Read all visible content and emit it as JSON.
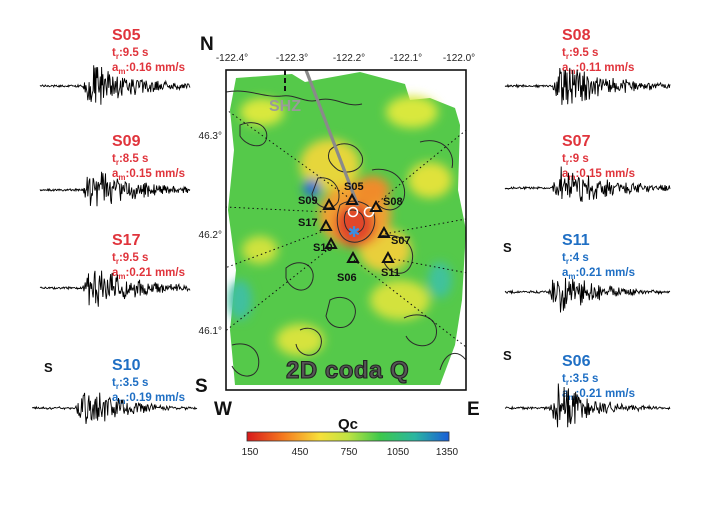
{
  "colors": {
    "red_label": "#e0343c",
    "blue_label": "#1f6fc4",
    "trace": "#000000",
    "fault": "#8a8a8a"
  },
  "map": {
    "compass": {
      "north": "N",
      "south": "S",
      "west": "W",
      "east": "E"
    },
    "lon_ticks": [
      "-122.4°",
      "-122.3°",
      "-122.2°",
      "-122.1°",
      "-122.0°"
    ],
    "lat_ticks": [
      "46.3°",
      "46.2°",
      "46.1°"
    ],
    "fault_label": "SHZ",
    "title": "2D coda Q",
    "stations": [
      "S05",
      "S09",
      "S08",
      "S17",
      "S07",
      "S10",
      "S06",
      "S11"
    ]
  },
  "colorbar": {
    "label": "Qc",
    "ticks": [
      "150",
      "450",
      "750",
      "1050",
      "1350"
    ],
    "range": [
      150,
      1350
    ],
    "gradient": [
      "#d7191c",
      "#f57a1f",
      "#f7e03a",
      "#bfe343",
      "#3cc84c",
      "#2bb6a0",
      "#1a5ed8"
    ]
  },
  "panels": [
    {
      "id": "S05",
      "tr": "9.5 s",
      "am": "0.16 mm/s",
      "color": "red",
      "s_marker": ""
    },
    {
      "id": "S09",
      "tr": "8.5 s",
      "am": "0.15 mm/s",
      "color": "red",
      "s_marker": ""
    },
    {
      "id": "S17",
      "tr": "9.5 s",
      "am": "0.21 mm/s",
      "color": "red",
      "s_marker": ""
    },
    {
      "id": "S10",
      "tr": "3.5 s",
      "am": "0.19 mm/s",
      "color": "blue",
      "s_marker": "S"
    },
    {
      "id": "S08",
      "tr": "9.5 s",
      "am": "0.11 mm/s",
      "color": "red",
      "s_marker": ""
    },
    {
      "id": "S07",
      "tr": "9 s",
      "am": "0.15 mm/s",
      "color": "red",
      "s_marker": ""
    },
    {
      "id": "S11",
      "tr": "4 s",
      "am": "0.21 mm/s",
      "color": "blue",
      "s_marker": "S"
    },
    {
      "id": "S06",
      "tr": "3.5 s",
      "am": "0.21 mm/s",
      "color": "blue",
      "s_marker": "S"
    }
  ]
}
